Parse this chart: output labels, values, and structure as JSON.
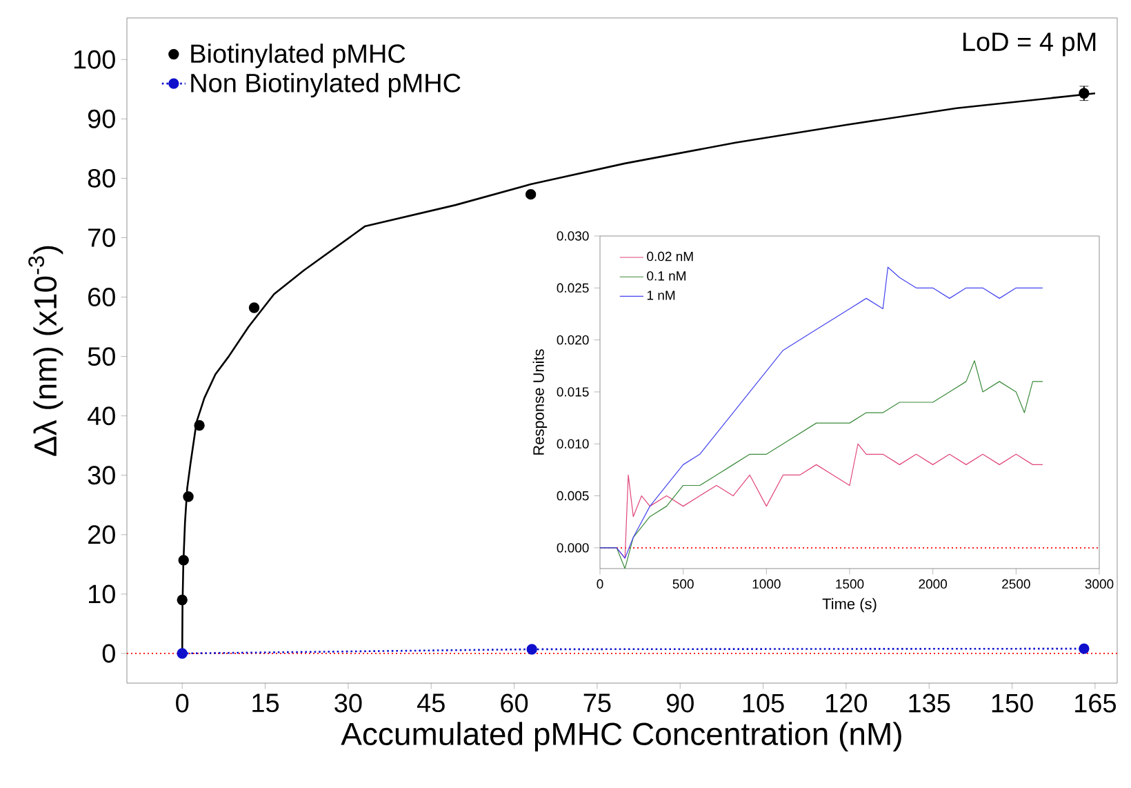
{
  "chart_data": [
    {
      "type": "scatter",
      "xlabel": "Accumulated pMHC Concentration (nM)",
      "ylabel": "Δλ (nm) (x10$^{-3}$)",
      "annotations": [
        "LoD = 4 pM"
      ],
      "xlim": [
        -10,
        169
      ],
      "ylim": [
        -5,
        107
      ],
      "xticks": [
        0,
        15,
        30,
        45,
        60,
        75,
        90,
        105,
        120,
        135,
        150,
        165
      ],
      "yticks": [
        0,
        10,
        20,
        30,
        40,
        50,
        60,
        70,
        80,
        90,
        100
      ],
      "legend": "top left",
      "ref_lines": [
        {
          "axis": "y",
          "value": 0,
          "color": "#ff2020",
          "line_style": "dotted"
        }
      ],
      "series": [
        {
          "name": "Biotinylated pMHC",
          "type": "scatter",
          "color": "#000000",
          "marker": "circle",
          "x": [
            0,
            0.25,
            1.1,
            3.1,
            13,
            63,
            163
          ],
          "values": [
            9,
            15.7,
            26.4,
            38.4,
            58.2,
            77.3,
            94.3
          ],
          "errors": [
            null,
            null,
            null,
            null,
            null,
            null,
            1.2
          ]
        },
        {
          "type": "line",
          "color": "#000000",
          "marker": "none",
          "line_style": "solid",
          "x": [
            0,
            0.05,
            0.2,
            0.5,
            0.9,
            1.5,
            2.6,
            4,
            6,
            8.4,
            12,
            16.6,
            22,
            33,
            49.4,
            63,
            80,
            100,
            120,
            140,
            165
          ],
          "values": [
            0,
            8,
            15,
            22,
            27.8,
            32,
            39,
            43,
            47,
            50,
            55,
            60.5,
            64.5,
            71.9,
            75.5,
            79,
            82.5,
            86,
            89,
            91.8,
            94.3
          ]
        },
        {
          "name": "Non Biotinylated pMHC",
          "type": "line",
          "color": "#1010cc",
          "marker": "circle",
          "line_style": "dotted",
          "x": [
            0,
            63.2,
            163
          ],
          "values": [
            0,
            0.7,
            0.8
          ]
        }
      ]
    },
    {
      "type": "line",
      "xlabel": "Time (s)",
      "ylabel": "Response Units",
      "xlim": [
        0,
        3000
      ],
      "ylim": [
        -0.002,
        0.03
      ],
      "xticks": [
        0,
        500,
        1000,
        1500,
        2000,
        2500,
        3000
      ],
      "yticks": [
        {
          "value": 0,
          "label": "0.000"
        },
        {
          "value": 0.005,
          "label": "0.005"
        },
        {
          "value": 0.01,
          "label": "0.010"
        },
        {
          "value": 0.015,
          "label": "0.015"
        },
        {
          "value": 0.02,
          "label": "0.020"
        },
        {
          "value": 0.025,
          "label": "0.025"
        },
        {
          "value": 0.03,
          "label": "0.030"
        }
      ],
      "legend": "top left",
      "ref_lines": [
        {
          "axis": "y",
          "value": 0,
          "color": "#ff2020",
          "line_style": "dotted"
        }
      ],
      "series": [
        {
          "name": "0.02 nM",
          "color": "#e0457b",
          "x": [
            0,
            100,
            150,
            170,
            200,
            250,
            300,
            400,
            500,
            600,
            700,
            800,
            900,
            1000,
            1100,
            1200,
            1300,
            1400,
            1500,
            1550,
            1600,
            1700,
            1800,
            1900,
            2000,
            2100,
            2200,
            2300,
            2400,
            2500,
            2600,
            2660
          ],
          "values": [
            0,
            0,
            -0.001,
            0.007,
            0.003,
            0.005,
            0.004,
            0.005,
            0.004,
            0.005,
            0.006,
            0.005,
            0.007,
            0.004,
            0.007,
            0.007,
            0.008,
            0.007,
            0.006,
            0.01,
            0.009,
            0.009,
            0.008,
            0.009,
            0.008,
            0.009,
            0.008,
            0.009,
            0.008,
            0.009,
            0.008,
            0.008
          ]
        },
        {
          "name": "0.1 nM",
          "color": "#3a8a3a",
          "x": [
            0,
            100,
            150,
            200,
            300,
            400,
            500,
            600,
            700,
            800,
            900,
            1000,
            1100,
            1200,
            1300,
            1400,
            1500,
            1600,
            1700,
            1800,
            1900,
            2000,
            2100,
            2200,
            2250,
            2300,
            2400,
            2500,
            2550,
            2600,
            2660
          ],
          "values": [
            0,
            0,
            -0.002,
            0.001,
            0.003,
            0.004,
            0.006,
            0.006,
            0.007,
            0.008,
            0.009,
            0.009,
            0.01,
            0.011,
            0.012,
            0.012,
            0.012,
            0.013,
            0.013,
            0.014,
            0.014,
            0.014,
            0.015,
            0.016,
            0.018,
            0.015,
            0.016,
            0.015,
            0.013,
            0.016,
            0.016
          ]
        },
        {
          "name": "1 nM",
          "color": "#4444ee",
          "x": [
            0,
            100,
            150,
            200,
            300,
            400,
            500,
            600,
            700,
            800,
            900,
            1000,
            1100,
            1200,
            1300,
            1400,
            1500,
            1600,
            1700,
            1730,
            1800,
            1900,
            2000,
            2100,
            2200,
            2300,
            2400,
            2500,
            2600,
            2660
          ],
          "values": [
            0,
            0,
            -0.001,
            0.001,
            0.004,
            0.006,
            0.008,
            0.009,
            0.011,
            0.013,
            0.015,
            0.017,
            0.019,
            0.02,
            0.021,
            0.022,
            0.023,
            0.024,
            0.023,
            0.027,
            0.026,
            0.025,
            0.025,
            0.024,
            0.025,
            0.025,
            0.024,
            0.025,
            0.025,
            0.025
          ]
        }
      ]
    }
  ]
}
